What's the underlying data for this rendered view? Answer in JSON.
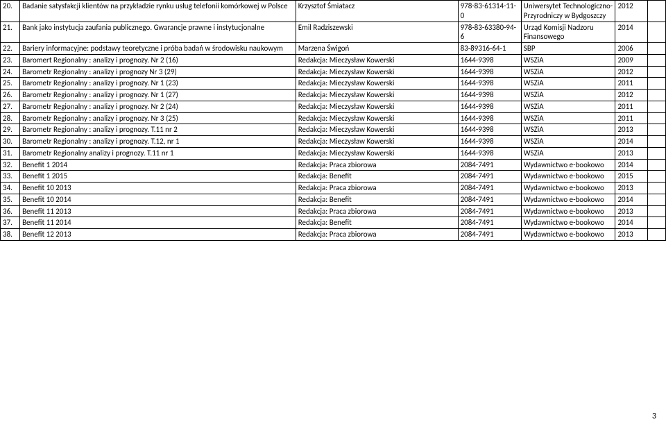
{
  "page_number": "3",
  "rows": [
    {
      "num": "20.",
      "title": "Badanie satysfakcji klientów na przykładzie rynku usług telefonii komórkowej w Polsce",
      "author": "Krzysztof Śmiatacz",
      "isbn": "978-83-61314-11-0",
      "publisher": "Uniwersytet Technologiczno-Przyrodniczy w Bydgoszczy",
      "year": "2012"
    },
    {
      "num": "21.",
      "title": "Bank jako instytucja zaufania publicznego. Gwarancje prawne i instytucjonalne",
      "author": "Emil Radziszewski",
      "isbn": "978-83-63380-94-6",
      "publisher": "Urząd Komisji Nadzoru Finansowego",
      "year": "2014"
    },
    {
      "num": "22.",
      "title": "Bariery informacyjne: podstawy teoretyczne i próba badań w środowisku naukowym",
      "author": "Marzena Świgoń",
      "isbn": "83-89316-64-1",
      "publisher": "SBP",
      "year": "2006"
    },
    {
      "num": "23.",
      "title": "Baromert Regionalny : analizy i prognozy. Nr 2 (16)",
      "author": "Redakcja: Mieczysław Kowerski",
      "isbn": "1644-9398",
      "publisher": "WSZiA",
      "year": "2009"
    },
    {
      "num": "24.",
      "title": "Barometr Regionalny : analizy i prognozy Nr 3 (29)",
      "author": "Redakcja: Mieczysław Kowerski",
      "isbn": "1644-9398",
      "publisher": "WSZiA",
      "year": "2012"
    },
    {
      "num": "25.",
      "title": "Barometr Regionalny : analizy i prognozy. Nr 1 (23)",
      "author": "Redakcja: Mieczysław Kowerski",
      "isbn": "1644-9398",
      "publisher": "WSZiA",
      "year": "2011"
    },
    {
      "num": "26.",
      "title": "Barometr Regionalny : analizy i prognozy. Nr 1 (27)",
      "author": "Redakcja: Mieczysław Kowerski",
      "isbn": "1644-9398",
      "publisher": "WSZiA",
      "year": "2012"
    },
    {
      "num": "27.",
      "title": "Barometr Regionalny : analizy i prognozy. Nr 2 (24)",
      "author": "Redakcja: Mieczysław Kowerski",
      "isbn": "1644-9398",
      "publisher": "WSZiA",
      "year": "2011"
    },
    {
      "num": "28.",
      "title": "Barometr Regionalny : analizy i prognozy. Nr 3 (25)",
      "author": "Redakcja: Mieczysław Kowerski",
      "isbn": "1644-9398",
      "publisher": "WSZiA",
      "year": "2011"
    },
    {
      "num": "29.",
      "title": "Barometr Regionalny : analizy i prognozy. T.11 nr 2",
      "author": "Redakcja: Mieczysław Kowerski",
      "isbn": "1644-9398",
      "publisher": "WSZiA",
      "year": "2013"
    },
    {
      "num": "30.",
      "title": "Barometr Regionalny : analizy i prognozy. T.12, nr 1",
      "author": "Redakcja: Mieczysław Kowerski",
      "isbn": "1644-9398",
      "publisher": "WSZiA",
      "year": "2014"
    },
    {
      "num": "31.",
      "title": "Barometr Regionalny analizy i prognozy. T.11 nr 1",
      "author": "Redakcja: Mieczysław Kowerski",
      "isbn": "1644-9398",
      "publisher": "WSZiA",
      "year": "2013"
    },
    {
      "num": "32.",
      "title": "Benefit 1 2014",
      "author": "Redakcja: Praca zbiorowa",
      "isbn": "2084-7491",
      "publisher": "Wydawnictwo e-bookowo",
      "year": "2014"
    },
    {
      "num": "33.",
      "title": "Benefit 1 2015",
      "author": "Redakcja: Benefit",
      "isbn": "2084-7491",
      "publisher": "Wydawnictwo e-bookowo",
      "year": "2015"
    },
    {
      "num": "34.",
      "title": "Benefit 10 2013",
      "author": "Redakcja: Praca zbiorowa",
      "isbn": "2084-7491",
      "publisher": "Wydawnictwo e-bookowo",
      "year": "2013"
    },
    {
      "num": "35.",
      "title": "Benefit 10 2014",
      "author": "Redakcja: Benefit",
      "isbn": "2084-7491",
      "publisher": "Wydawnictwo e-bookowo",
      "year": "2014"
    },
    {
      "num": "36.",
      "title": "Benefit 11 2013",
      "author": "Redakcja: Praca zbiorowa",
      "isbn": "2084-7491",
      "publisher": "Wydawnictwo e-bookowo",
      "year": "2013"
    },
    {
      "num": "37.",
      "title": "Benefit 11 2014",
      "author": "Redakcja: Benefit",
      "isbn": "2084-7491",
      "publisher": "Wydawnictwo e-bookowo",
      "year": "2014"
    },
    {
      "num": "38.",
      "title": "Benefit 12 2013",
      "author": "Redakcja: Praca zbiorowa",
      "isbn": "2084-7491",
      "publisher": "Wydawnictwo e-bookowo",
      "year": "2013"
    }
  ]
}
